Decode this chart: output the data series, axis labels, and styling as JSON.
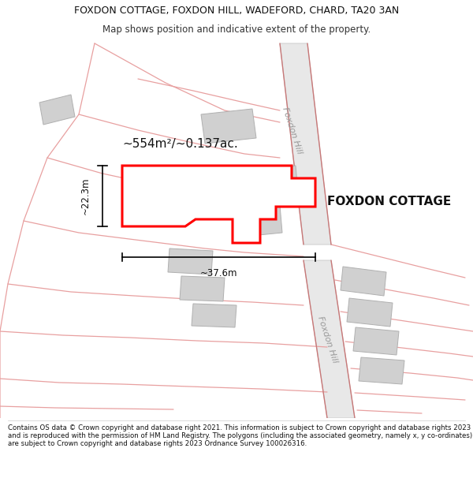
{
  "title_line1": "FOXDON COTTAGE, FOXDON HILL, WADEFORD, CHARD, TA20 3AN",
  "title_line2": "Map shows position and indicative extent of the property.",
  "footnote": "Contains OS data © Crown copyright and database right 2021. This information is subject to Crown copyright and database rights 2023 and is reproduced with the permission of HM Land Registry. The polygons (including the associated geometry, namely x, y co-ordinates) are subject to Crown copyright and database rights 2023 Ordnance Survey 100026316.",
  "bg_color": "#ffffff",
  "road_fill": "#e8e8e8",
  "pink_line": "#e8a0a0",
  "building_fill": "#d0d0d0",
  "building_edge": "#b0b0b0",
  "property_fill": "#ffffff",
  "property_edge": "#ff0000",
  "area_text": "~554m²/~0.137ac.",
  "name_text": "FOXDON COTTAGE",
  "dim_width": "~37.6m",
  "dim_height": "~22.3m",
  "road_label": "Foxdon Hill",
  "title_fontsize": 9.0,
  "subtitle_fontsize": 8.5,
  "footnote_fontsize": 6.2
}
